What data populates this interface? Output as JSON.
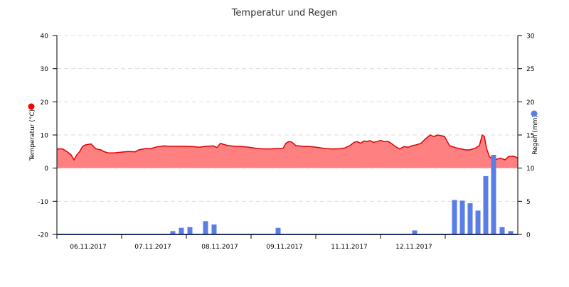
{
  "chart_data": {
    "type": "line",
    "title": "Temperatur und Regen",
    "y_left_label": "Temperatur (°C)",
    "y_right_label": "Regen (mm)",
    "y_left_ticks": [
      "40",
      "30",
      "20",
      "10",
      "0",
      "-10",
      "-20"
    ],
    "y_right_ticks": [
      "30",
      "25",
      "20",
      "15",
      "10",
      "5",
      "0"
    ],
    "y_left_range": [
      -20,
      40
    ],
    "y_right_range": [
      0,
      30
    ],
    "x_range": [
      0,
      648
    ],
    "x_tick_labels": [
      {
        "x": 44,
        "label": "06.11.2017"
      },
      {
        "x": 135,
        "label": "07.11.2017"
      },
      {
        "x": 229,
        "label": "08.11.2017"
      },
      {
        "x": 320,
        "label": "09.11.2017"
      },
      {
        "x": 411,
        "label": "11.11.2017"
      },
      {
        "x": 502,
        "label": "12.11.2017"
      }
    ],
    "x_tick_marks": [
      0,
      91,
      182,
      273,
      364,
      455,
      546
    ],
    "grid_dashed": true,
    "colors": {
      "temperature_line": "#e00000",
      "temperature_fill": "#ff8080",
      "rain_bar": "#5a7ee6",
      "temperature_marker": "#ff0000",
      "rain_marker": "#5a7ee6",
      "axis": "#000000",
      "grid": "#dddddd"
    },
    "series": [
      {
        "name": "Temperatur",
        "axis": "left",
        "x": [
          0,
          8,
          14,
          20,
          24,
          28,
          32,
          36,
          40,
          48,
          55,
          62,
          66,
          72,
          80,
          90,
          100,
          110,
          115,
          125,
          132,
          140,
          150,
          160,
          170,
          180,
          190,
          200,
          210,
          220,
          225,
          230,
          234,
          240,
          250,
          260,
          270,
          280,
          290,
          300,
          310,
          318,
          322,
          326,
          330,
          336,
          345,
          355,
          365,
          375,
          385,
          395,
          405,
          412,
          418,
          422,
          427,
          432,
          436,
          440,
          445,
          450,
          455,
          460,
          466,
          470,
          476,
          482,
          488,
          494,
          500,
          505,
          512,
          518,
          525,
          530,
          535,
          540,
          545,
          552,
          560,
          568,
          575,
          580,
          588,
          594,
          598,
          601,
          604,
          608,
          612,
          618,
          624,
          630,
          635,
          641,
          645,
          648
        ],
        "values": [
          5.8,
          5.8,
          5.0,
          4.0,
          2.5,
          4.0,
          5.0,
          6.5,
          7.0,
          7.3,
          5.8,
          5.5,
          5.0,
          4.6,
          4.6,
          4.8,
          5.0,
          4.9,
          5.5,
          5.9,
          5.9,
          6.4,
          6.7,
          6.6,
          6.6,
          6.6,
          6.5,
          6.3,
          6.6,
          6.7,
          6.2,
          7.5,
          7.2,
          6.8,
          6.6,
          6.5,
          6.3,
          6.0,
          5.8,
          5.8,
          5.9,
          6.0,
          7.5,
          8.0,
          7.9,
          6.8,
          6.6,
          6.5,
          6.3,
          6.0,
          5.8,
          5.8,
          6.1,
          6.8,
          7.8,
          8.0,
          7.5,
          8.2,
          8.0,
          8.3,
          7.8,
          8.0,
          8.4,
          8.0,
          8.0,
          7.5,
          6.5,
          5.8,
          6.5,
          6.3,
          6.8,
          7.0,
          7.5,
          8.8,
          10.0,
          9.5,
          10.0,
          9.8,
          9.5,
          6.8,
          6.2,
          5.8,
          5.5,
          5.5,
          6.0,
          6.8,
          10.0,
          9.5,
          6.0,
          3.5,
          2.8,
          2.7,
          3.0,
          2.5,
          3.5,
          3.6,
          3.4,
          3.0
        ]
      },
      {
        "name": "Regen",
        "axis": "right",
        "x": [
          163,
          175,
          187,
          209,
          221,
          311,
          503,
          514,
          559,
          570,
          581,
          592,
          603,
          614,
          626,
          638
        ],
        "values": [
          0.5,
          1.0,
          1.1,
          2.0,
          1.5,
          1.0,
          0.6,
          0.1,
          5.2,
          5.1,
          4.7,
          3.6,
          8.8,
          12.0,
          1.1,
          0.5
        ]
      }
    ]
  }
}
